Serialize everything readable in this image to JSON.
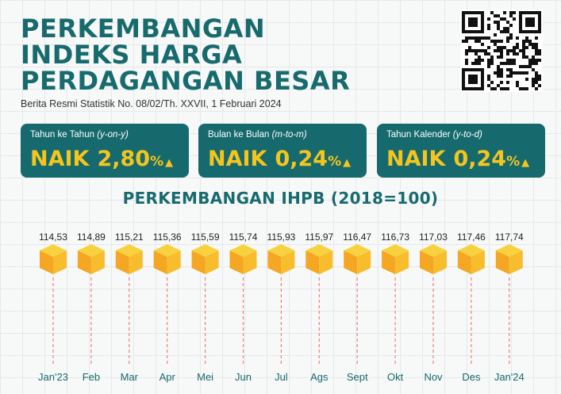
{
  "header": {
    "title_lines": [
      "PERKEMBANGAN",
      "INDEKS HARGA",
      "PERDAGANGAN BESAR"
    ],
    "subtitle": "Berita Resmi Statistik No. 08/02/Th. XXVII, 1 Februari 2024"
  },
  "cards": [
    {
      "label": "Tahun ke Tahun",
      "label_sub": "(y-on-y)",
      "status": "NAIK",
      "value": "2,80",
      "unit": "%",
      "direction_icon": "triangle-up-icon"
    },
    {
      "label": "Bulan ke Bulan",
      "label_sub": "(m-to-m)",
      "status": "NAIK",
      "value": "0,24",
      "unit": "%",
      "direction_icon": "triangle-up-icon"
    },
    {
      "label": "Tahun Kalender",
      "label_sub": "(y-to-d)",
      "status": "NAIK",
      "value": "0,24",
      "unit": "%",
      "direction_icon": "triangle-up-icon"
    }
  ],
  "colors": {
    "primary": "#176a6d",
    "accent": "#f4c51d",
    "cube_top": "#f7d23e",
    "cube_left": "#f5a623",
    "cube_right": "#f7bd2c",
    "drop_line": "#ef7f7f"
  },
  "chart_data": {
    "type": "bar",
    "title": "PERKEMBANGAN IHPB (2018=100)",
    "categories": [
      "Jan'23",
      "Feb",
      "Mar",
      "Apr",
      "Mei",
      "Jun",
      "Jul",
      "Ags",
      "Sept",
      "Okt",
      "Nov",
      "Des",
      "Jan'24"
    ],
    "values": [
      114.53,
      114.89,
      115.21,
      115.36,
      115.59,
      115.74,
      115.93,
      115.97,
      116.47,
      116.73,
      117.03,
      117.46,
      117.74
    ],
    "value_labels": [
      "114,53",
      "114,89",
      "115,21",
      "115,36",
      "115,59",
      "115,74",
      "115,93",
      "115,97",
      "116,47",
      "116,73",
      "117,03",
      "117,46",
      "117,74"
    ],
    "marker": "cube",
    "xlabel": "",
    "ylabel": ""
  }
}
